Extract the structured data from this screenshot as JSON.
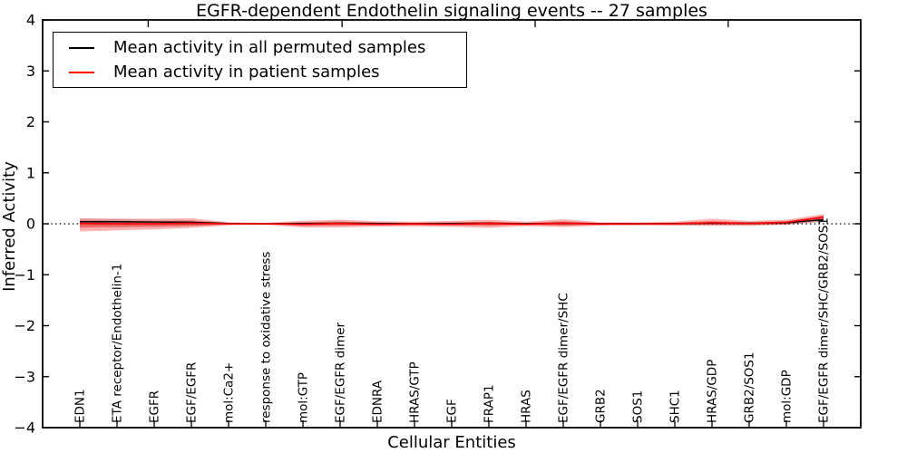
{
  "chart_data": {
    "type": "line",
    "title": "EGFR-dependent Endothelin signaling events -- 27 samples",
    "xlabel": "Cellular Entities",
    "ylabel": "Inferred Activity",
    "ylim": [
      -4,
      4
    ],
    "y_ticks": [
      4,
      3,
      2,
      1,
      0,
      -1,
      -2,
      -3,
      -4
    ],
    "grid": false,
    "legend_position": "upper left",
    "zero_line": "black dotted at y=0",
    "categories": [
      "EDN1",
      "ETA receptor/Endothelin-1",
      "EGFR",
      "EGF/EGFR",
      "mol:Ca2+",
      "response to oxidative stress",
      "mol:GTP",
      "EGF/EGFR dimer",
      "EDNRA",
      "HRAS/GTP",
      "EGF",
      "FRAP1",
      "HRAS",
      "EGF/EGFR dimer/SHC",
      "GRB2",
      "SOS1",
      "SHC1",
      "HRAS/GDP",
      "GRB2/SOS1",
      "mol:GDP",
      "EGF/EGFR dimer/SHC/GRB2/SOS1"
    ],
    "series": [
      {
        "name": "Mean activity in all permuted samples",
        "color": "#000000",
        "band_color": "rgba(110,110,110,0.30)",
        "values": [
          0.04,
          0.04,
          0.035,
          0.03,
          0.005,
          0.0,
          0.005,
          0.01,
          0.005,
          0.0,
          0.005,
          0.01,
          0.0,
          0.01,
          0.0,
          0.0,
          0.005,
          0.01,
          0.01,
          0.02,
          0.08
        ],
        "band_upper": [
          0.1,
          0.09,
          0.08,
          0.07,
          0.02,
          0.015,
          0.035,
          0.045,
          0.03,
          0.025,
          0.03,
          0.04,
          0.02,
          0.045,
          0.02,
          0.02,
          0.025,
          0.04,
          0.035,
          0.05,
          0.13
        ],
        "band_lower": [
          -0.06,
          -0.055,
          -0.05,
          -0.04,
          -0.015,
          -0.01,
          -0.03,
          -0.03,
          -0.025,
          -0.02,
          -0.025,
          -0.03,
          -0.02,
          -0.03,
          -0.02,
          -0.02,
          -0.02,
          -0.02,
          -0.02,
          -0.01,
          0.03
        ]
      },
      {
        "name": "Mean activity in patient samples",
        "color": "#ff0000",
        "band_color": "rgba(255,0,0,0.30)",
        "values": [
          0.005,
          0.0,
          0.0,
          0.01,
          0.0,
          0.0,
          -0.01,
          0.005,
          -0.01,
          -0.005,
          -0.01,
          0.005,
          -0.01,
          0.01,
          -0.005,
          0.0,
          0.0,
          0.02,
          0.005,
          0.03,
          0.13
        ],
        "band_upper": [
          0.11,
          0.1,
          0.1,
          0.11,
          0.03,
          0.02,
          0.06,
          0.08,
          0.05,
          0.04,
          0.055,
          0.08,
          0.04,
          0.09,
          0.03,
          0.03,
          0.04,
          0.1,
          0.055,
          0.08,
          0.19
        ],
        "band_lower": [
          -0.15,
          -0.13,
          -0.11,
          -0.08,
          -0.03,
          -0.02,
          -0.07,
          -0.07,
          -0.055,
          -0.05,
          -0.06,
          -0.08,
          -0.045,
          -0.065,
          -0.035,
          -0.03,
          -0.035,
          -0.04,
          -0.04,
          -0.02,
          0.05
        ],
        "inner_band_upper": [
          0.06,
          0.055,
          0.05,
          0.06,
          0.015,
          0.01,
          0.03,
          0.04,
          0.025,
          0.02,
          0.03,
          0.04,
          0.02,
          0.05,
          0.015,
          0.015,
          0.02,
          0.055,
          0.03,
          0.05,
          0.16
        ],
        "inner_band_lower": [
          -0.08,
          -0.07,
          -0.06,
          -0.045,
          -0.015,
          -0.01,
          -0.04,
          -0.04,
          -0.03,
          -0.025,
          -0.03,
          -0.04,
          -0.02,
          -0.035,
          -0.02,
          -0.015,
          -0.02,
          -0.02,
          -0.02,
          -0.01,
          0.08
        ]
      }
    ]
  }
}
